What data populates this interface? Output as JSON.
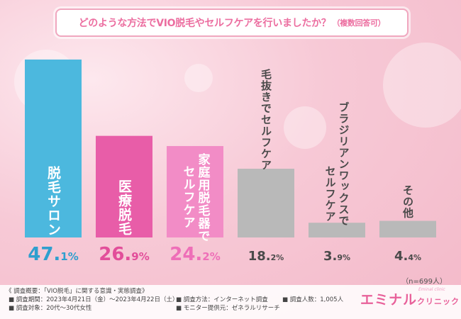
{
  "title": "どのような方法でVIO脱毛やセルフケアを行いましたか？",
  "title_note": "（複数回答可）",
  "sample_note": "（n=699人）",
  "chart_data": {
    "type": "bar",
    "title": "どのような方法でVIO脱毛やセルフケアを行いましたか？（複数回答可）",
    "categories": [
      "脱毛サロン",
      "医療脱毛",
      "家庭用脱毛器でセルフケア",
      "毛抜きでセルフケア",
      "ブラジリアンワックスでセルフケア",
      "その他"
    ],
    "bar_labels": [
      [
        "脱毛サロン"
      ],
      [
        "医療脱毛"
      ],
      [
        "家庭用脱毛器で",
        "セルフケア"
      ],
      [
        "毛抜きでセルフケア"
      ],
      [
        "ブラジリアンワックスで",
        "セルフケア"
      ],
      [
        "その他"
      ]
    ],
    "values": [
      47.1,
      26.9,
      24.2,
      18.2,
      3.9,
      4.4
    ],
    "value_labels": [
      "47.1%",
      "26.9%",
      "24.2%",
      "18.2%",
      "3.9%",
      "4.4%"
    ],
    "unit": "%",
    "colors": [
      "#4cb8de",
      "#e85da8",
      "#f28cc6",
      "#b9b9b9",
      "#b9b9b9",
      "#b9b9b9"
    ],
    "label_colors": [
      "#2f9fce",
      "#e24e9a",
      "#ee6fb8",
      "#4a4a4a",
      "#4a4a4a",
      "#4a4a4a"
    ],
    "ylim": [
      0,
      50
    ]
  },
  "footer": {
    "overview": "《 調査概要：「VIO脱毛」に関する意識・実態調査》",
    "period": "■ 調査期間：2023年4月21日（金）〜2023年4月22日（土）",
    "target": "■ 調査対象：20代〜30代女性",
    "method": "■ 調査方法：インターネット調査",
    "provider": "■ モニター提供元：ゼネラルリサーチ",
    "count": "■ 調査人数：1,005人"
  },
  "brand": {
    "name": "エミナル",
    "sub": "クリニック",
    "tag": "Eminal clinic"
  }
}
